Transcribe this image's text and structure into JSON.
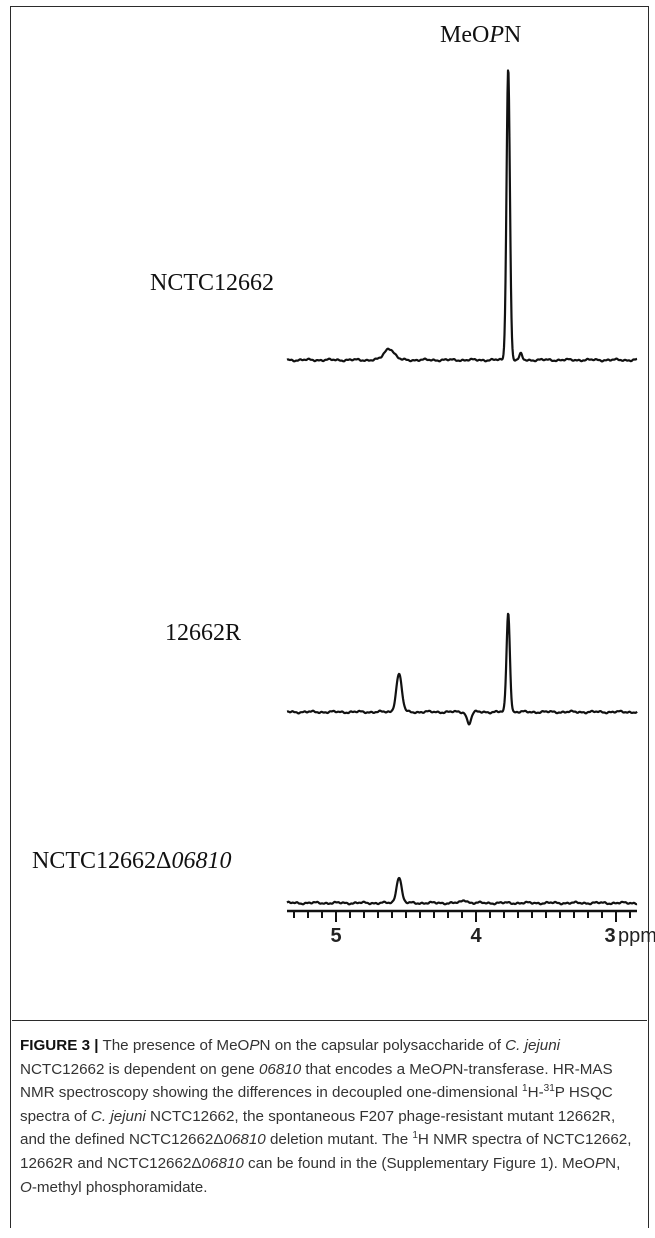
{
  "figure": {
    "peak_label_prefix": "MeO",
    "peak_label_italic": "P",
    "peak_label_suffix": "N",
    "samples": [
      {
        "prefix": "NCTC12662",
        "italic": ""
      },
      {
        "prefix": "12662R",
        "italic": ""
      },
      {
        "prefix": "NCTC12662Δ",
        "italic": "06810"
      }
    ]
  },
  "chart_data": {
    "type": "line",
    "title": "",
    "xlabel": "ppm",
    "xlim": [
      5.35,
      2.85
    ],
    "x_reversed": true,
    "xticks": [
      5,
      4,
      3
    ],
    "major_tick_step": 1,
    "minor_tick_step": 0.1,
    "series": [
      {
        "name": "NCTC12662",
        "peaks": [
          {
            "x": 4.62,
            "height": 0.04
          },
          {
            "x": 3.77,
            "height": 1.0
          },
          {
            "x": 3.68,
            "height": 0.02
          }
        ]
      },
      {
        "name": "12662R",
        "peaks": [
          {
            "x": 4.55,
            "height": 0.13
          },
          {
            "x": 4.05,
            "height": -0.04
          },
          {
            "x": 3.77,
            "height": 0.34
          }
        ]
      },
      {
        "name": "NCTC12662Δ06810",
        "peaks": [
          {
            "x": 4.55,
            "height": 0.09
          },
          {
            "x": 4.08,
            "height": 0.01
          }
        ]
      }
    ]
  },
  "caption": {
    "fig_label": "FIGURE 3 |",
    "segments": [
      {
        "t": " The presence of MeO",
        "i": false
      },
      {
        "t": "P",
        "i": true
      },
      {
        "t": "N on the capsular polysaccharide of ",
        "i": false
      },
      {
        "t": "C. jejuni",
        "i": true
      },
      {
        "t": " NCTC12662 is dependent on gene ",
        "i": false
      },
      {
        "t": "06810",
        "i": true
      },
      {
        "t": " that encodes a MeO",
        "i": false
      },
      {
        "t": "P",
        "i": true
      },
      {
        "t": "N-transferase. HR-MAS NMR spectroscopy showing the differences in decoupled one-dimensional ",
        "i": false
      },
      {
        "t": "1",
        "sup": true
      },
      {
        "t": "H-",
        "i": false
      },
      {
        "t": "31",
        "sup": true
      },
      {
        "t": "P HSQC spectra of ",
        "i": false
      },
      {
        "t": "C. jejuni",
        "i": true
      },
      {
        "t": " NCTC12662, the spontaneous F207 phage-resistant mutant 12662R, and the defined NCTC12662Δ",
        "i": false
      },
      {
        "t": "06810",
        "i": true
      },
      {
        "t": " deletion mutant. The ",
        "i": false
      },
      {
        "t": "1",
        "sup": true
      },
      {
        "t": "H NMR spectra of NCTC12662, 12662R and NCTC12662Δ",
        "i": false
      },
      {
        "t": "06810",
        "i": true
      },
      {
        "t": " can be found in the (Supplementary Figure 1). MeO",
        "i": false
      },
      {
        "t": "P",
        "i": true
      },
      {
        "t": "N, ",
        "i": false
      },
      {
        "t": "O",
        "i": true
      },
      {
        "t": "-methyl phosphoramidate.",
        "i": false
      }
    ]
  }
}
